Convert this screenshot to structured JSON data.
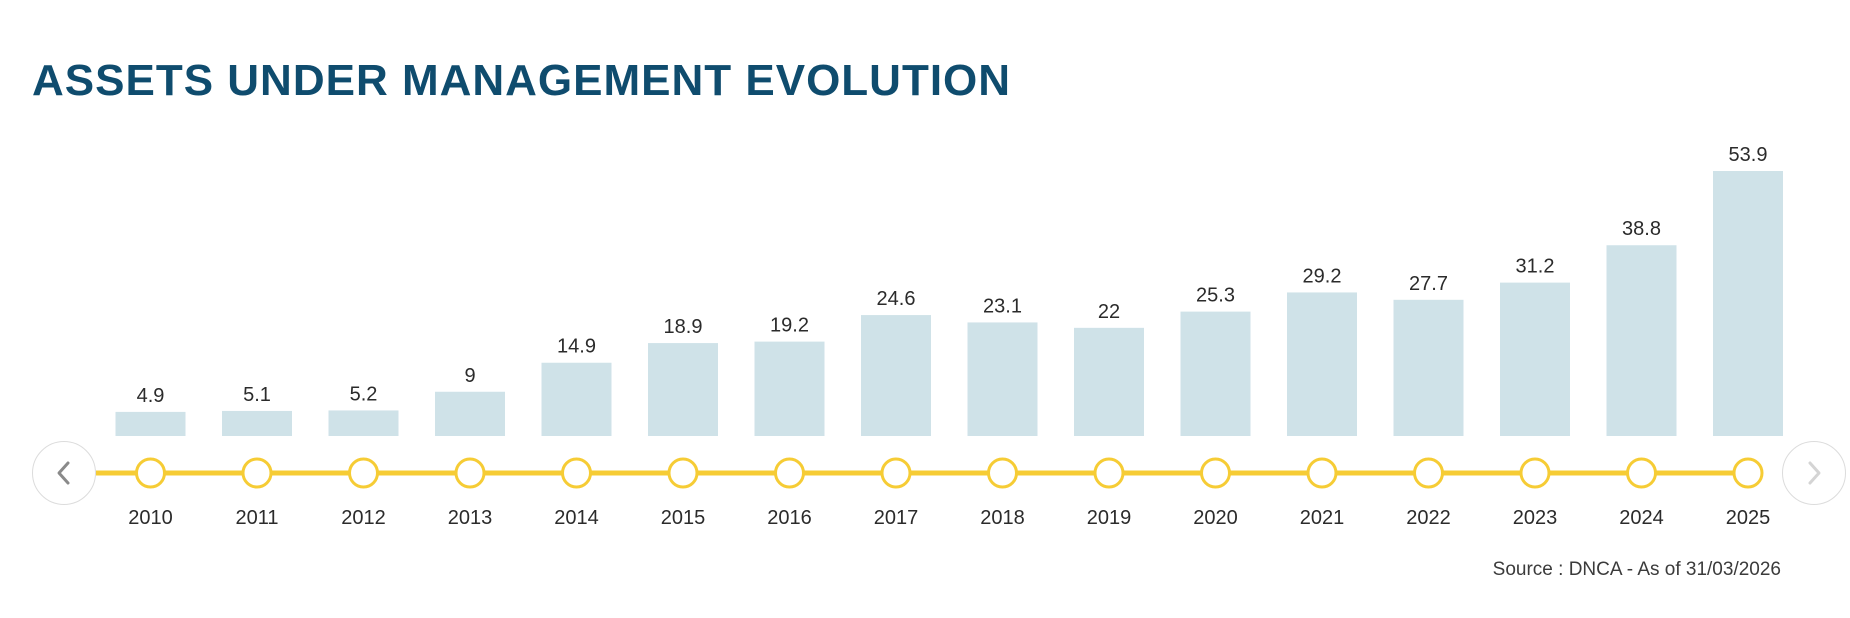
{
  "header": {
    "title": "ASSETS UNDER MANAGEMENT EVOLUTION"
  },
  "footer": {
    "source": "Source : DNCA - As of 31/03/2026"
  },
  "navigation": {
    "prev_icon": "chevron-left-icon",
    "next_icon": "chevron-right-icon",
    "prev_enabled": true,
    "next_enabled": false
  },
  "colors": {
    "title": "#0f4c6e",
    "bar": "#cfe2e8",
    "timeline": "#f6cc35",
    "marker_fill": "#ffffff",
    "text": "#2b2b2b",
    "nav_active": "#8a8a8a",
    "nav_disabled": "#d4d4d4"
  },
  "chart_data": {
    "type": "bar",
    "title": "ASSETS UNDER MANAGEMENT EVOLUTION",
    "categories": [
      "2010",
      "2011",
      "2012",
      "2013",
      "2014",
      "2015",
      "2016",
      "2017",
      "2018",
      "2019",
      "2020",
      "2021",
      "2022",
      "2023",
      "2024",
      "2025"
    ],
    "values": [
      4.9,
      5.1,
      5.2,
      9,
      14.9,
      18.9,
      19.2,
      24.6,
      23.1,
      22,
      25.3,
      29.2,
      27.7,
      31.2,
      38.8,
      53.9
    ],
    "value_labels": [
      "4.9",
      "5.1",
      "5.2",
      "9",
      "14.9",
      "18.9",
      "19.2",
      "24.6",
      "23.1",
      "22",
      "25.3",
      "29.2",
      "27.7",
      "31.2",
      "38.8",
      "53.9"
    ],
    "xlabel": "",
    "ylabel": "",
    "ylim": [
      0,
      53.9
    ],
    "grid": false,
    "legend": "none"
  }
}
